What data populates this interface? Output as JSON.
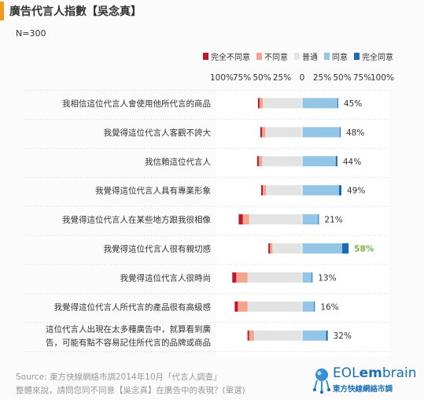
{
  "title": "廣告代言人指數【吳念真】",
  "sample_size": "N=300",
  "footer": {
    "source": "Source: 東方快線網絡市調2014年10月「代言人調查」",
    "question": "整體來說，請問您同不同意【吳念真】在廣告中的表現？(單選)"
  },
  "logo": {
    "text_light": "EOL",
    "text_bold": "em",
    "text_light2": "brain",
    "subtitle": "東方快線網絡市調"
  },
  "chart_data": {
    "type": "bar",
    "stacked": "diverging",
    "legend_position": "top-right",
    "legend": [
      "完全不同意",
      "不同意",
      "普通",
      "同意",
      "完全同意"
    ],
    "colors": {
      "完全不同意": "#c0152f",
      "不同意": "#f2a58a",
      "普通": "#e3e3e3",
      "同意": "#93c6e6",
      "完全同意": "#1a6bb3",
      "highlight": "#7ab23b"
    },
    "axis_ticks": [
      "100%",
      "75%",
      "50%",
      "25%",
      "0",
      "25%",
      "50%",
      "75%",
      "100%"
    ],
    "xlim": [
      -100,
      100
    ],
    "categories": [
      "我相信這位代言人會使用他所代言的商品",
      "我覺得這位代言人客觀不誇大",
      "我信賴這位代言人",
      "我覺得這位代言人具有專業形象",
      "我覺得這位代言人在某些地方跟我很相像",
      "我覺得這位代言人很有親切感",
      "我覺得這位代言人很時尚",
      "我覺得這位代言人所代言的產品很有高級感",
      [
        "這位代言人出現在太多種廣告中，就算看到廣",
        "告，可能有點不容易記住所代言的品牌或商品"
      ]
    ],
    "series": [
      {
        "name": "完全不同意",
        "values": [
          2,
          2,
          2,
          2,
          5,
          2,
          5,
          4,
          2
        ]
      },
      {
        "name": "不同意",
        "values": [
          4,
          4,
          4,
          4,
          8,
          3,
          14,
          12,
          6
        ]
      },
      {
        "name": "普通",
        "values": [
          49,
          46,
          50,
          45,
          66,
          37,
          68,
          68,
          60
        ]
      },
      {
        "name": "同意",
        "values": [
          44,
          47,
          42,
          46,
          20,
          50,
          12,
          15,
          30
        ]
      },
      {
        "name": "完全同意",
        "values": [
          1,
          1,
          2,
          3,
          1,
          8,
          1,
          1,
          2
        ]
      }
    ],
    "agree_totals": [
      "45%",
      "48%",
      "44%",
      "49%",
      "21%",
      "58%",
      "13%",
      "16%",
      "32%"
    ],
    "highlight_index": 5
  }
}
